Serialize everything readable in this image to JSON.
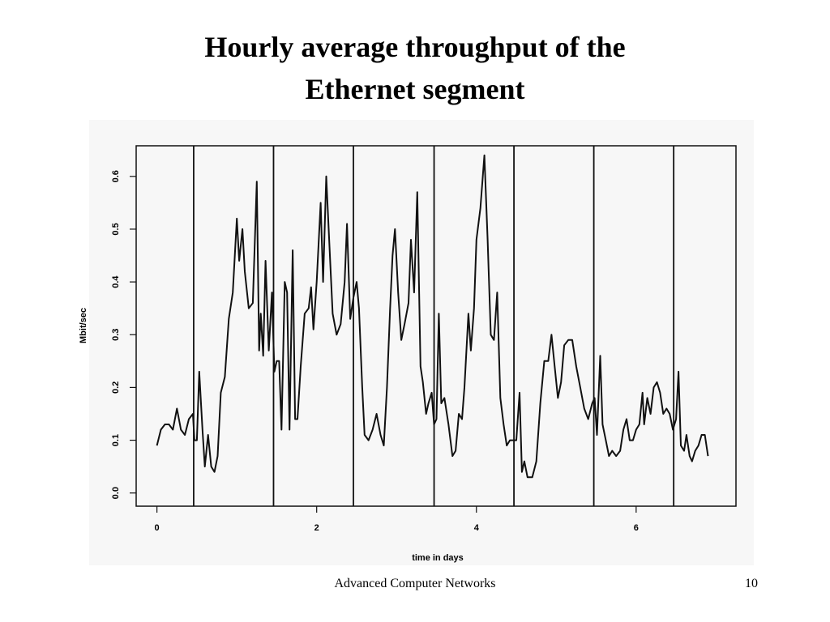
{
  "slide": {
    "title_lines": [
      "Hourly average  throughput of the",
      "Ethernet segment"
    ],
    "footer": "Advanced Computer Networks",
    "page_number": "10"
  },
  "chart_data": {
    "type": "line",
    "xlabel": "time in days",
    "ylabel": "Mbit/sec",
    "xlim": [
      -0.26,
      7.25
    ],
    "ylim": [
      -0.025,
      0.658
    ],
    "xticks": [
      0,
      2,
      4,
      6
    ],
    "yticks": [
      {
        "value": 0,
        "label": "0.0"
      },
      0.1,
      0.2,
      0.3,
      0.4,
      0.5,
      0.6
    ],
    "vlines": [
      0.46,
      1.46,
      2.46,
      3.47,
      4.47,
      5.47,
      6.47
    ],
    "series": [
      {
        "color": "#111111",
        "x": [
          0,
          0.05,
          0.1,
          0.15,
          0.2,
          0.25,
          0.3,
          0.35,
          0.4,
          0.45,
          0.47,
          0.5,
          0.53,
          0.57,
          0.6,
          0.64,
          0.68,
          0.72,
          0.76,
          0.8,
          0.85,
          0.9,
          0.95,
          1.0,
          1.03,
          1.07,
          1.1,
          1.15,
          1.2,
          1.25,
          1.28,
          1.3,
          1.33,
          1.36,
          1.4,
          1.44,
          1.47,
          1.5,
          1.53,
          1.56,
          1.6,
          1.63,
          1.66,
          1.7,
          1.73,
          1.76,
          1.8,
          1.85,
          1.9,
          1.93,
          1.96,
          2.0,
          2.05,
          2.08,
          2.12,
          2.15,
          2.2,
          2.25,
          2.3,
          2.35,
          2.38,
          2.42,
          2.46,
          2.5,
          2.53,
          2.57,
          2.6,
          2.65,
          2.7,
          2.75,
          2.8,
          2.84,
          2.88,
          2.92,
          2.95,
          2.98,
          3.02,
          3.06,
          3.1,
          3.15,
          3.18,
          3.22,
          3.26,
          3.3,
          3.33,
          3.37,
          3.4,
          3.44,
          3.47,
          3.5,
          3.53,
          3.56,
          3.6,
          3.65,
          3.7,
          3.74,
          3.78,
          3.82,
          3.85,
          3.9,
          3.93,
          3.97,
          4.0,
          4.05,
          4.1,
          4.14,
          4.18,
          4.22,
          4.26,
          4.3,
          4.34,
          4.38,
          4.42,
          4.47,
          4.5,
          4.54,
          4.57,
          4.6,
          4.64,
          4.7,
          4.75,
          4.8,
          4.85,
          4.9,
          4.94,
          4.98,
          5.02,
          5.06,
          5.1,
          5.15,
          5.2,
          5.25,
          5.3,
          5.35,
          5.4,
          5.45,
          5.48,
          5.51,
          5.55,
          5.58,
          5.62,
          5.66,
          5.7,
          5.75,
          5.8,
          5.84,
          5.88,
          5.92,
          5.96,
          6.0,
          6.04,
          6.08,
          6.1,
          6.14,
          6.18,
          6.22,
          6.26,
          6.3,
          6.34,
          6.38,
          6.42,
          6.46,
          6.5,
          6.53,
          6.56,
          6.6,
          6.63,
          6.67,
          6.7,
          6.74,
          6.78,
          6.82,
          6.86,
          6.9
        ],
        "values": [
          0.09,
          0.12,
          0.13,
          0.13,
          0.12,
          0.16,
          0.12,
          0.11,
          0.14,
          0.15,
          0.1,
          0.1,
          0.23,
          0.12,
          0.05,
          0.11,
          0.05,
          0.04,
          0.07,
          0.19,
          0.22,
          0.33,
          0.38,
          0.52,
          0.44,
          0.5,
          0.42,
          0.35,
          0.36,
          0.59,
          0.27,
          0.34,
          0.26,
          0.44,
          0.27,
          0.38,
          0.23,
          0.25,
          0.25,
          0.12,
          0.4,
          0.38,
          0.12,
          0.46,
          0.14,
          0.14,
          0.24,
          0.34,
          0.35,
          0.39,
          0.31,
          0.4,
          0.55,
          0.4,
          0.6,
          0.5,
          0.34,
          0.3,
          0.32,
          0.4,
          0.51,
          0.33,
          0.37,
          0.4,
          0.35,
          0.2,
          0.11,
          0.1,
          0.12,
          0.15,
          0.11,
          0.09,
          0.2,
          0.35,
          0.45,
          0.5,
          0.38,
          0.29,
          0.32,
          0.36,
          0.48,
          0.38,
          0.57,
          0.24,
          0.21,
          0.15,
          0.17,
          0.19,
          0.13,
          0.14,
          0.34,
          0.17,
          0.18,
          0.13,
          0.07,
          0.08,
          0.15,
          0.14,
          0.2,
          0.34,
          0.27,
          0.35,
          0.48,
          0.54,
          0.64,
          0.48,
          0.3,
          0.29,
          0.38,
          0.18,
          0.13,
          0.09,
          0.1,
          0.1,
          0.1,
          0.19,
          0.04,
          0.06,
          0.03,
          0.03,
          0.06,
          0.17,
          0.25,
          0.25,
          0.3,
          0.24,
          0.18,
          0.21,
          0.28,
          0.29,
          0.29,
          0.24,
          0.2,
          0.16,
          0.14,
          0.17,
          0.18,
          0.11,
          0.26,
          0.13,
          0.1,
          0.07,
          0.08,
          0.07,
          0.08,
          0.12,
          0.14,
          0.1,
          0.1,
          0.12,
          0.13,
          0.19,
          0.13,
          0.18,
          0.15,
          0.2,
          0.21,
          0.19,
          0.15,
          0.16,
          0.15,
          0.12,
          0.14,
          0.23,
          0.09,
          0.08,
          0.11,
          0.07,
          0.06,
          0.08,
          0.09,
          0.11,
          0.11,
          0.07
        ]
      }
    ]
  }
}
